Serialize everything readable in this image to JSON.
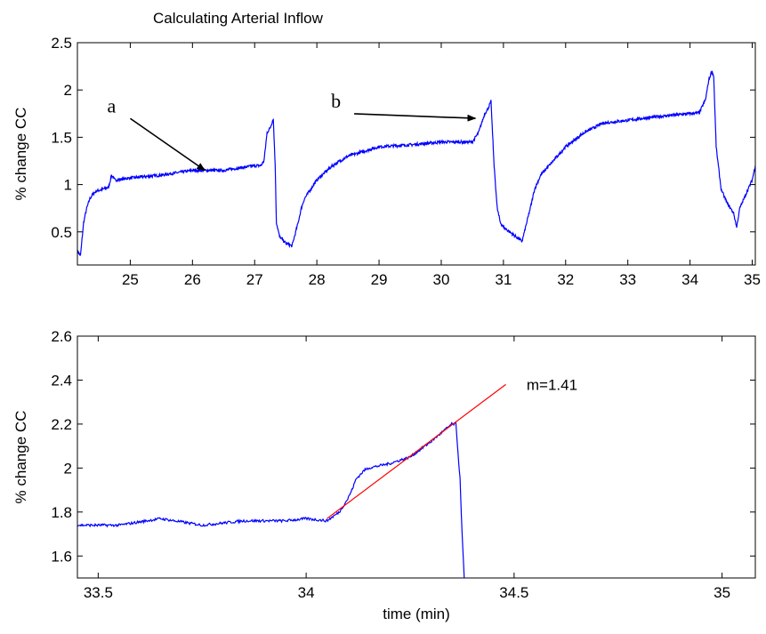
{
  "figure_title": "Calculating Arterial Inflow",
  "colors": {
    "signal": "#0000ff",
    "fit_line": "#ff0000",
    "axes": "#000000",
    "annotation": "#000000"
  },
  "chart_data": [
    {
      "type": "line",
      "title": "",
      "xlabel": "",
      "ylabel": "% change CC",
      "xlim": [
        24.15,
        35.05
      ],
      "ylim": [
        0.15,
        2.5
      ],
      "xticks": [
        25,
        26,
        27,
        28,
        29,
        30,
        31,
        32,
        33,
        34,
        35
      ],
      "xtick_labels": [
        "25",
        "26",
        "27",
        "28",
        "29",
        "30",
        "31",
        "32",
        "33",
        "34",
        "35"
      ],
      "yticks": [
        0.5,
        1,
        1.5,
        2,
        2.5
      ],
      "ytick_labels": [
        "0.5",
        "1",
        "1.5",
        "2",
        "2.5"
      ],
      "grid": false,
      "series": [
        {
          "x": [
            24.15,
            24.2,
            24.25,
            24.3,
            24.35,
            24.4,
            24.45,
            24.55,
            24.65,
            24.7,
            24.75,
            24.8,
            25.0,
            25.5,
            26.0,
            26.5,
            27.0,
            27.1,
            27.15,
            27.2,
            27.25,
            27.3,
            27.33,
            27.35,
            27.4,
            27.5,
            27.6,
            27.7,
            27.75,
            27.8,
            27.9,
            28.0,
            28.25,
            28.5,
            29.0,
            29.5,
            30.0,
            30.5,
            30.6,
            30.7,
            30.75,
            30.8,
            30.85,
            30.9,
            30.95,
            31.0,
            31.1,
            31.2,
            31.3,
            31.45,
            31.5,
            31.6,
            31.8,
            32.0,
            32.3,
            32.6,
            33.0,
            33.5,
            34.0,
            34.15,
            34.25,
            34.3,
            34.35,
            34.38,
            34.42,
            34.5,
            34.6,
            34.7,
            34.75,
            34.8,
            34.9,
            35.0,
            35.05
          ],
          "y": [
            0.3,
            0.25,
            0.6,
            0.75,
            0.85,
            0.9,
            0.93,
            0.95,
            0.97,
            1.1,
            1.05,
            1.05,
            1.07,
            1.1,
            1.15,
            1.15,
            1.2,
            1.2,
            1.25,
            1.55,
            1.6,
            1.7,
            1.2,
            0.6,
            0.45,
            0.38,
            0.35,
            0.6,
            0.75,
            0.85,
            0.95,
            1.05,
            1.2,
            1.3,
            1.4,
            1.42,
            1.45,
            1.45,
            1.55,
            1.75,
            1.8,
            1.88,
            1.2,
            0.75,
            0.6,
            0.55,
            0.5,
            0.45,
            0.4,
            0.8,
            0.95,
            1.1,
            1.25,
            1.4,
            1.55,
            1.65,
            1.68,
            1.72,
            1.75,
            1.76,
            1.9,
            2.1,
            2.2,
            2.15,
            1.4,
            0.95,
            0.8,
            0.7,
            0.55,
            0.75,
            0.9,
            1.05,
            1.2
          ]
        }
      ],
      "annotations": [
        {
          "text": "a",
          "x": 24.8,
          "y": 1.83,
          "arrow_to": [
            26.2,
            1.15
          ]
        },
        {
          "text": "b",
          "x": 28.4,
          "y": 1.88,
          "arrow_to": [
            30.55,
            1.7
          ]
        }
      ]
    },
    {
      "type": "line",
      "title": "",
      "xlabel": "time (min)",
      "ylabel": "% change CC",
      "xlim": [
        33.45,
        35.08
      ],
      "ylim": [
        1.5,
        2.6
      ],
      "xticks": [
        33.5,
        34,
        34.5,
        35
      ],
      "xtick_labels": [
        "33.5",
        "34",
        "34.5",
        "35"
      ],
      "yticks": [
        1.6,
        1.8,
        2,
        2.2,
        2.4,
        2.6
      ],
      "ytick_labels": [
        "1.6",
        "1.8",
        "2",
        "2.2",
        "2.4",
        "2.6"
      ],
      "grid": false,
      "series": [
        {
          "x": [
            33.45,
            33.55,
            33.65,
            33.75,
            33.85,
            33.95,
            34.0,
            34.05,
            34.08,
            34.1,
            34.11,
            34.12,
            34.14,
            34.15,
            34.2,
            34.25,
            34.3,
            34.35,
            34.36,
            34.37,
            34.375,
            34.38
          ],
          "y": [
            1.74,
            1.74,
            1.77,
            1.74,
            1.76,
            1.76,
            1.77,
            1.76,
            1.8,
            1.86,
            1.9,
            1.95,
            1.99,
            2.0,
            2.02,
            2.05,
            2.12,
            2.2,
            2.2,
            1.95,
            1.7,
            1.5
          ]
        },
        {
          "name": "m=1.41",
          "x": [
            34.05,
            34.48
          ],
          "y": [
            1.77,
            2.38
          ]
        }
      ],
      "annotations": [
        {
          "text": "m=1.41",
          "x": 34.53,
          "y": 2.38
        }
      ]
    }
  ]
}
